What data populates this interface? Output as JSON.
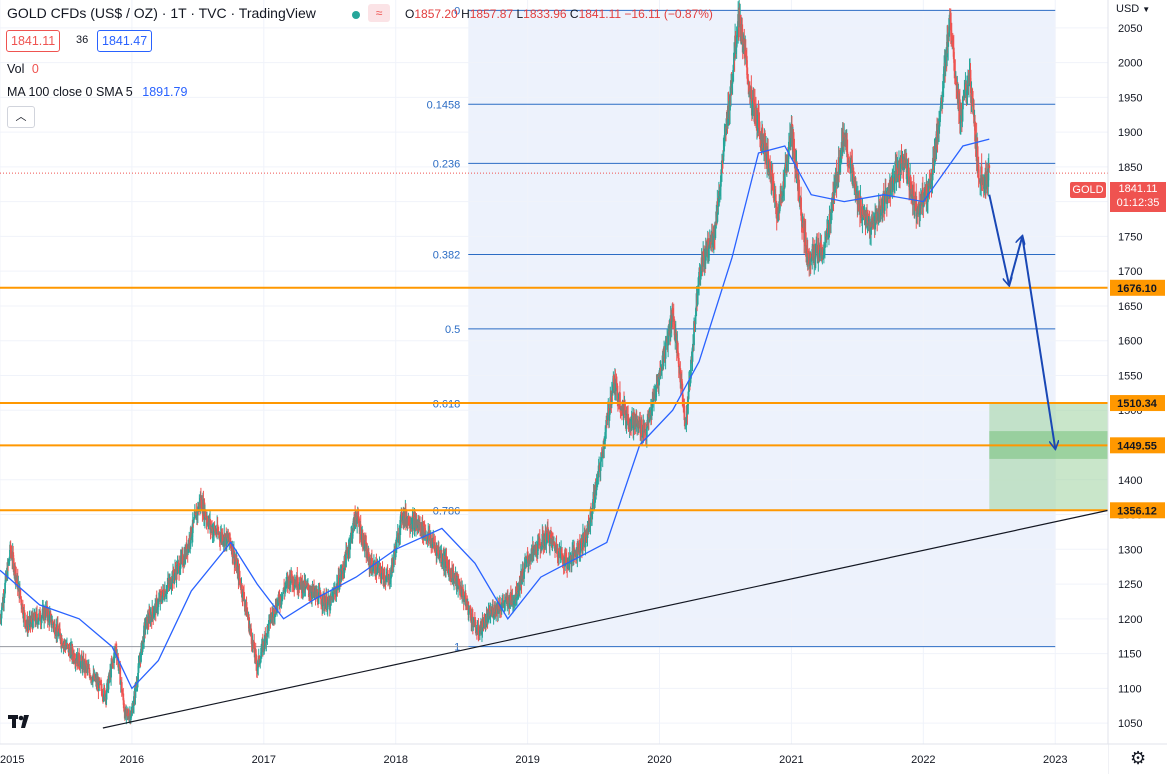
{
  "header": {
    "symbol": "GOLD CFDs (US$ / OZ) · 1T · TVC · TradingView",
    "ohlc": {
      "o_label": "O",
      "o": "1857.20",
      "h_label": "H",
      "h": "1857.87",
      "l_label": "L",
      "l": "1833.96",
      "c_label": "C",
      "c": "1841.11",
      "change": "−16.11 (−0.87%)"
    },
    "bid": "1841.11",
    "spread": "36",
    "ask": "1841.47",
    "vol_label": "Vol",
    "vol_value": "0",
    "ma_label": "MA 100 close 0 SMA 5",
    "ma_value": "1891.79",
    "collapse_icon": "chevron-up-icon"
  },
  "price_axis": {
    "currency_label": "USD",
    "currency_icon": "chevron-down-icon",
    "settings_icon": "gear-icon",
    "current_symbol_tag": "GOLD",
    "current_price": "1841.11",
    "countdown": "01:12:35"
  },
  "chart_data": {
    "type": "candlestick",
    "x_ticks": [
      "2015",
      "2016",
      "2017",
      "2018",
      "2019",
      "2020",
      "2021",
      "2022",
      "2023"
    ],
    "y_ticks": [
      1050,
      1100,
      1150,
      1200,
      1250,
      1300,
      1350,
      1400,
      1450,
      1500,
      1550,
      1600,
      1650,
      1700,
      1750,
      1800,
      1850,
      1900,
      1950,
      2000,
      2050
    ],
    "y_range": [
      1020,
      2090
    ],
    "x_range": [
      2015.0,
      2023.4
    ],
    "price_series": [
      [
        2015.0,
        1200
      ],
      [
        2015.08,
        1300
      ],
      [
        2015.2,
        1190
      ],
      [
        2015.35,
        1210
      ],
      [
        2015.5,
        1160
      ],
      [
        2015.65,
        1130
      ],
      [
        2015.8,
        1090
      ],
      [
        2015.88,
        1160
      ],
      [
        2015.95,
        1060
      ],
      [
        2016.0,
        1065
      ],
      [
        2016.1,
        1190
      ],
      [
        2016.25,
        1240
      ],
      [
        2016.4,
        1290
      ],
      [
        2016.52,
        1370
      ],
      [
        2016.6,
        1330
      ],
      [
        2016.75,
        1310
      ],
      [
        2016.85,
        1230
      ],
      [
        2016.95,
        1130
      ],
      [
        2017.05,
        1200
      ],
      [
        2017.2,
        1260
      ],
      [
        2017.35,
        1240
      ],
      [
        2017.5,
        1220
      ],
      [
        2017.6,
        1270
      ],
      [
        2017.7,
        1350
      ],
      [
        2017.8,
        1280
      ],
      [
        2017.95,
        1255
      ],
      [
        2018.05,
        1350
      ],
      [
        2018.2,
        1330
      ],
      [
        2018.35,
        1290
      ],
      [
        2018.5,
        1240
      ],
      [
        2018.62,
        1180
      ],
      [
        2018.75,
        1215
      ],
      [
        2018.9,
        1230
      ],
      [
        2019.0,
        1285
      ],
      [
        2019.15,
        1320
      ],
      [
        2019.3,
        1280
      ],
      [
        2019.45,
        1320
      ],
      [
        2019.55,
        1420
      ],
      [
        2019.65,
        1540
      ],
      [
        2019.75,
        1490
      ],
      [
        2019.9,
        1470
      ],
      [
        2020.0,
        1550
      ],
      [
        2020.1,
        1640
      ],
      [
        2020.2,
        1480
      ],
      [
        2020.3,
        1700
      ],
      [
        2020.42,
        1760
      ],
      [
        2020.55,
        1980
      ],
      [
        2020.6,
        2070
      ],
      [
        2020.7,
        1940
      ],
      [
        2020.8,
        1880
      ],
      [
        2020.9,
        1780
      ],
      [
        2021.0,
        1900
      ],
      [
        2021.12,
        1720
      ],
      [
        2021.25,
        1730
      ],
      [
        2021.4,
        1900
      ],
      [
        2021.5,
        1800
      ],
      [
        2021.6,
        1760
      ],
      [
        2021.7,
        1800
      ],
      [
        2021.85,
        1860
      ],
      [
        2021.95,
        1790
      ],
      [
        2022.05,
        1820
      ],
      [
        2022.15,
        1960
      ],
      [
        2022.2,
        2070
      ],
      [
        2022.28,
        1920
      ],
      [
        2022.35,
        1980
      ],
      [
        2022.42,
        1840
      ],
      [
        2022.48,
        1830
      ],
      [
        2022.5,
        1841
      ]
    ],
    "ma_series": [
      [
        2015.0,
        1270
      ],
      [
        2015.3,
        1220
      ],
      [
        2015.6,
        1200
      ],
      [
        2015.85,
        1160
      ],
      [
        2016.0,
        1100
      ],
      [
        2016.2,
        1140
      ],
      [
        2016.45,
        1240
      ],
      [
        2016.75,
        1310
      ],
      [
        2016.95,
        1250
      ],
      [
        2017.15,
        1200
      ],
      [
        2017.4,
        1230
      ],
      [
        2017.7,
        1260
      ],
      [
        2018.0,
        1300
      ],
      [
        2018.35,
        1330
      ],
      [
        2018.6,
        1280
      ],
      [
        2018.85,
        1200
      ],
      [
        2019.1,
        1260
      ],
      [
        2019.4,
        1290
      ],
      [
        2019.6,
        1310
      ],
      [
        2019.85,
        1450
      ],
      [
        2020.1,
        1500
      ],
      [
        2020.3,
        1570
      ],
      [
        2020.55,
        1720
      ],
      [
        2020.75,
        1870
      ],
      [
        2020.95,
        1880
      ],
      [
        2021.15,
        1810
      ],
      [
        2021.4,
        1800
      ],
      [
        2021.7,
        1810
      ],
      [
        2022.0,
        1800
      ],
      [
        2022.3,
        1880
      ],
      [
        2022.5,
        1890
      ]
    ],
    "fib_levels": [
      {
        "label": "0",
        "price": 2075
      },
      {
        "label": "0.1458",
        "price": 1940
      },
      {
        "label": "0.236",
        "price": 1855
      },
      {
        "label": "0.382",
        "price": 1724
      },
      {
        "label": "0.5",
        "price": 1617
      },
      {
        "label": "0.618",
        "price": 1510
      },
      {
        "label": "0.786",
        "price": 1356
      },
      {
        "label": "1",
        "price": 1160
      }
    ],
    "fib_x_range": [
      2018.55,
      2023.0
    ],
    "horizontal_levels": [
      {
        "label": "1676.10",
        "price": 1676.1
      },
      {
        "label": "1510.34",
        "price": 1510.34
      },
      {
        "label": "1449.55",
        "price": 1449.55
      },
      {
        "label": "1356.12",
        "price": 1356.12
      }
    ],
    "trendline": [
      [
        2015.78,
        1043
      ],
      [
        2023.4,
        1356
      ]
    ],
    "target_zone": {
      "x": [
        2022.5,
        2023.4
      ],
      "price": [
        1356,
        1510
      ],
      "inner_price": [
        1430,
        1470
      ]
    },
    "projection_arrows": [
      [
        [
          2022.5,
          1810
        ],
        [
          2022.65,
          1680
        ]
      ],
      [
        [
          2022.65,
          1680
        ],
        [
          2022.75,
          1750
        ]
      ],
      [
        [
          2022.75,
          1750
        ],
        [
          2023.0,
          1445
        ]
      ]
    ],
    "colors": {
      "up": "#26a69a",
      "down": "#ef5350",
      "ma": "#2962ff",
      "fib": "#2b6cc4",
      "level": "#ff9800",
      "zone": "#a5d6a7",
      "arrow": "#1947b5",
      "fib_bg": "#edf2fc",
      "price_tag": "#ef5350"
    }
  }
}
